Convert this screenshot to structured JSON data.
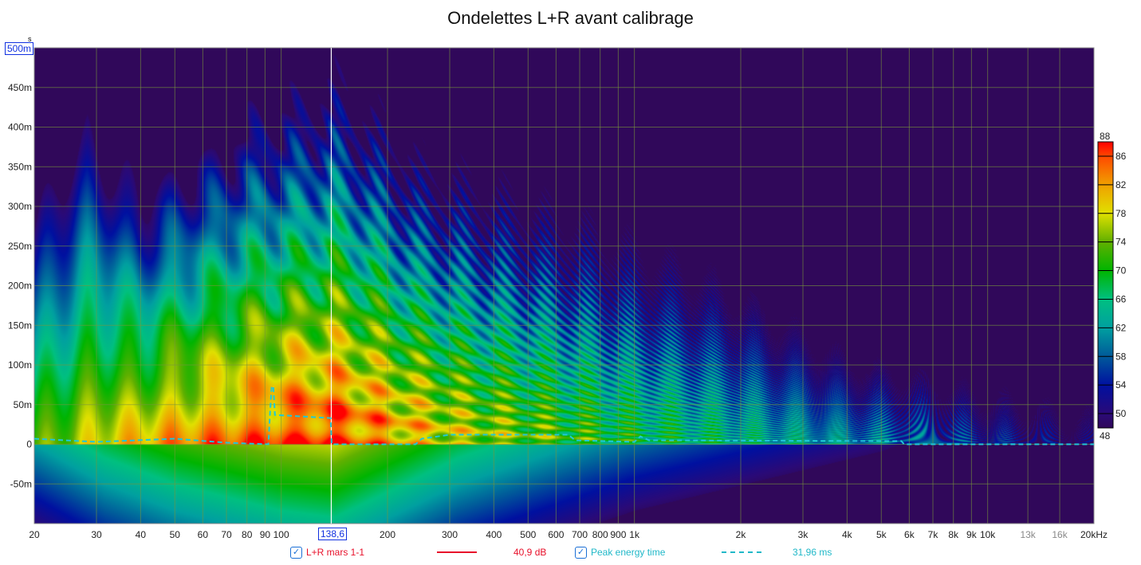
{
  "chart_data": {
    "type": "heatmap",
    "title": "Ondelettes L+R avant calibrage",
    "x_scale": "log",
    "xlim": [
      20,
      20000
    ],
    "x_ticks": [
      20,
      30,
      40,
      50,
      60,
      70,
      80,
      90,
      100,
      200,
      300,
      400,
      500,
      600,
      700,
      800,
      900,
      1000,
      2000,
      3000,
      4000,
      5000,
      6000,
      7000,
      8000,
      9000,
      10000,
      13000,
      16000,
      20000
    ],
    "x_tick_labels": [
      "20",
      "30",
      "40",
      "50",
      "60",
      "70",
      "80",
      "90",
      "100",
      "200",
      "300",
      "400",
      "500",
      "600",
      "700",
      "800",
      "900",
      "1k",
      "2k",
      "3k",
      "4k",
      "5k",
      "6k",
      "7k",
      "8k",
      "9k",
      "10k",
      "13k",
      "16k",
      "20kHz"
    ],
    "ylim": [
      -0.1,
      0.5
    ],
    "y_ticks": [
      -0.05,
      0,
      0.05,
      0.1,
      0.15,
      0.2,
      0.25,
      0.3,
      0.35,
      0.4,
      0.45
    ],
    "y_tick_labels": [
      "-50m",
      "0",
      "50m",
      "100m",
      "150m",
      "200m",
      "250m",
      "300m",
      "350m",
      "400m",
      "450m"
    ],
    "y_unit_label": "s",
    "y_cursor_label": "500m",
    "x_cursor_label": "138,6",
    "x_cursor_value": 138.6,
    "colorbar": {
      "min": 48,
      "max": 88,
      "ticks": [
        "86",
        "82",
        "78",
        "74",
        "70",
        "66",
        "62",
        "58",
        "54",
        "50"
      ],
      "top_label": "88",
      "bottom_label": "48",
      "stops": [
        [
          48,
          "#30085a"
        ],
        [
          50,
          "#2a0a78"
        ],
        [
          54,
          "#0010a0"
        ],
        [
          58,
          "#005a9a"
        ],
        [
          62,
          "#00a0a0"
        ],
        [
          66,
          "#00c080"
        ],
        [
          70,
          "#00b400"
        ],
        [
          74,
          "#60b000"
        ],
        [
          78,
          "#e0e000"
        ],
        [
          82,
          "#f0a000"
        ],
        [
          86,
          "#ff4800"
        ],
        [
          88,
          "#ff0000"
        ]
      ]
    },
    "series": [
      {
        "name": "Peak energy time",
        "color": "#20c8d8",
        "style": "dashed",
        "x": [
          20,
          30,
          50,
          70,
          92,
          93,
          94,
          95,
          96,
          138,
          139,
          240,
          250,
          300,
          650,
          680,
          1000,
          1040,
          1100,
          5700,
          5800,
          20000
        ],
        "y": [
          0.007,
          0.003,
          0.007,
          0.002,
          0,
          0.04,
          0.073,
          0.073,
          0.037,
          0.033,
          0,
          0,
          0.007,
          0.012,
          0.012,
          0.005,
          0.003,
          0.01,
          0.005,
          0.004,
          0,
          0
        ]
      }
    ],
    "legend": [
      {
        "label": "L+R mars 1-1",
        "value": "40,9 dB",
        "color": "#e8102a",
        "checked": true
      },
      {
        "label": "Peak energy time",
        "value": "31,96 ms",
        "color": "#20b8c8",
        "checked": true
      }
    ],
    "background": "#30085a"
  }
}
